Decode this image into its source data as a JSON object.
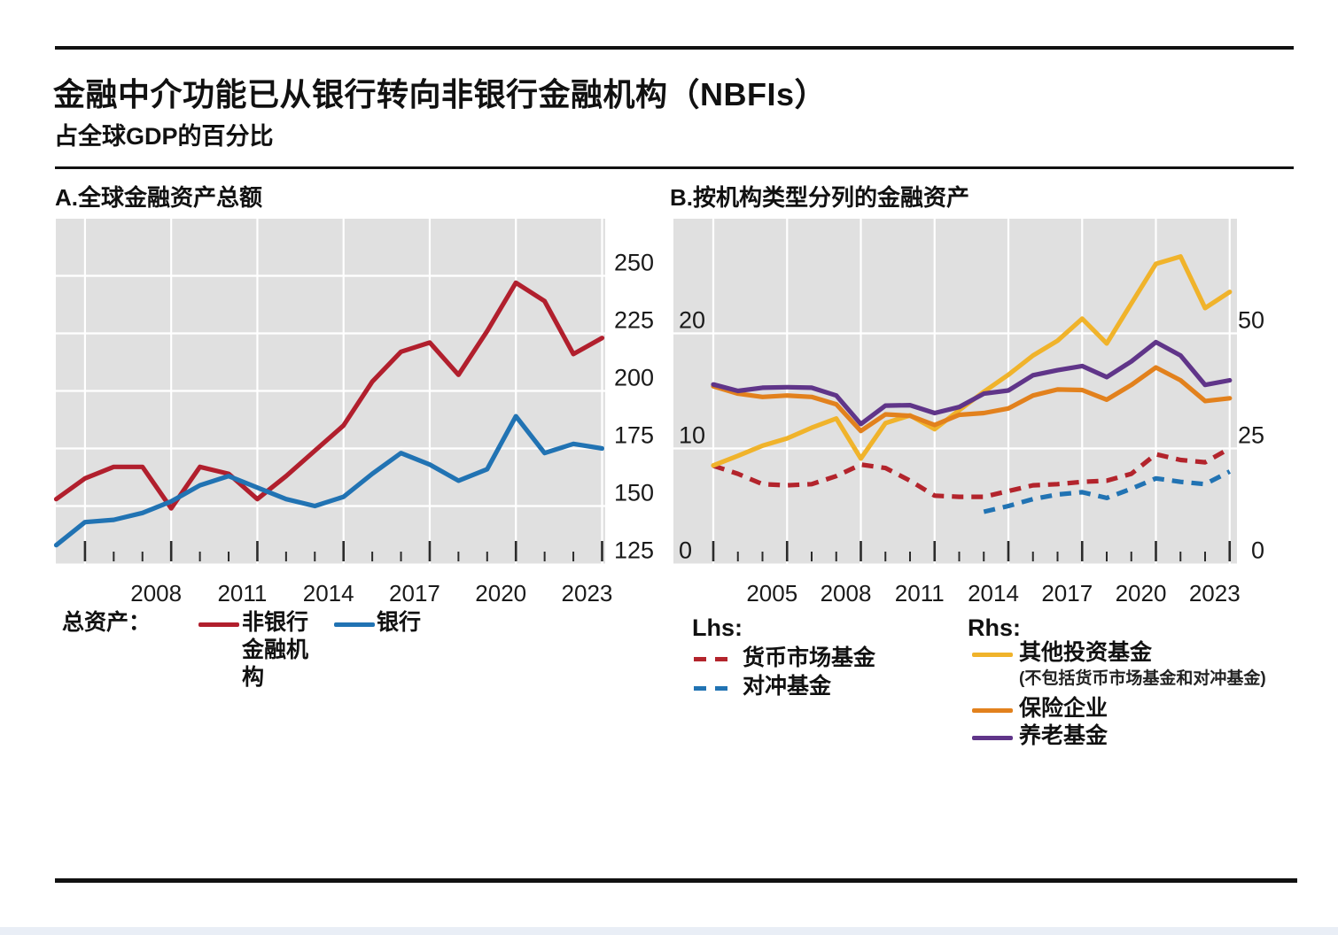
{
  "page": {
    "background": "#ffffff",
    "plot_background": "#e0e0e0",
    "gridline_color": "#ffffff",
    "tick_color": "#2b2b2b",
    "text_color": "#111111",
    "bottom_bar_color": "#e9eef6"
  },
  "header": {
    "title": "金融中介功能已从银行转向非银行金融机构（NBFIs）",
    "subtitle": "占全球GDP的百分比"
  },
  "panel_a": {
    "title": "A.全球金融资产总额",
    "legend": {
      "prefix": "总资产：",
      "items": [
        {
          "id": "nbfi",
          "label": "非银行金融机构",
          "color": "#b11f2d",
          "dash": false
        },
        {
          "id": "banks",
          "label": "银行",
          "color": "#2173b3",
          "dash": false
        }
      ]
    }
  },
  "panel_b": {
    "title": "B.按机构类型分列的金融资产",
    "legend": {
      "lhs_title": "Lhs:",
      "rhs_title": "Rhs:",
      "lhs_items": [
        {
          "id": "mmf",
          "label": "货币市场基金",
          "color": "#b3242c",
          "dash": true
        },
        {
          "id": "hedge",
          "label": "对冲基金",
          "color": "#2173b3",
          "dash": true
        }
      ],
      "rhs_items": [
        {
          "id": "oif",
          "label": "其他投资基金",
          "note": "(不包括货币市场基金和对冲基金)",
          "color": "#f0b32b",
          "dash": false
        },
        {
          "id": "insurance",
          "label": "保险企业",
          "color": "#e2811d",
          "dash": false
        },
        {
          "id": "pension",
          "label": "养老基金",
          "color": "#603589",
          "dash": false
        }
      ]
    }
  },
  "chart_data": [
    {
      "id": "a",
      "type": "line",
      "title": "A.全球金融资产总额",
      "xlabel": "",
      "ylabel": "占全球GDP的百分比",
      "x_major_ticks": [
        2005,
        2008,
        2011,
        2014,
        2017,
        2020,
        2023
      ],
      "x_labeled_ticks": [
        "2008",
        "2011",
        "2014",
        "2017",
        "2020",
        "2023"
      ],
      "x_range": [
        2004,
        2023
      ],
      "y_axis_side": "right",
      "yticks": [
        125,
        150,
        175,
        200,
        225,
        250
      ],
      "ylim": [
        125,
        275
      ],
      "grid": true,
      "series": [
        {
          "id": "nbfi",
          "name": "非银行金融机构",
          "color": "#b11f2d",
          "dash": false,
          "axis": "left",
          "x0": 2004,
          "values": [
            153,
            162,
            167,
            167,
            149,
            167,
            164,
            153,
            163,
            174,
            185,
            204,
            217,
            221,
            207,
            226,
            247,
            239,
            216,
            223
          ]
        },
        {
          "id": "banks",
          "name": "银行",
          "color": "#2173b3",
          "dash": false,
          "axis": "left",
          "x0": 2004,
          "values": [
            133,
            143,
            144,
            147,
            152,
            159,
            163,
            158,
            153,
            150,
            154,
            164,
            173,
            168,
            161,
            166,
            189,
            173,
            177,
            175
          ]
        }
      ]
    },
    {
      "id": "b",
      "type": "line",
      "title": "B.按机构类型分列的金融资产",
      "xlabel": "",
      "ylabel": "占全球GDP的百分比",
      "x_major_ticks": [
        2002,
        2005,
        2008,
        2011,
        2014,
        2017,
        2020,
        2023
      ],
      "x_labeled_ticks": [
        "2005",
        "2008",
        "2011",
        "2014",
        "2017",
        "2020",
        "2023"
      ],
      "x_range": [
        2002,
        2023
      ],
      "y_left": {
        "ticks": [
          0,
          10,
          20
        ],
        "lim": [
          0,
          30
        ]
      },
      "y_right": {
        "ticks": [
          0,
          25,
          50
        ],
        "lim": [
          0,
          75
        ]
      },
      "grid": true,
      "series": [
        {
          "id": "mmf",
          "name": "货币市场基金",
          "color": "#b3242c",
          "dash": true,
          "axis": "left",
          "x0": 2002,
          "values": [
            8.5,
            7.8,
            6.9,
            6.8,
            6.9,
            7.6,
            8.6,
            8.3,
            7.2,
            5.9,
            5.8,
            5.8,
            6.3,
            6.8,
            6.9,
            7.1,
            7.2,
            7.8,
            9.5,
            9.0,
            8.8,
            10.0
          ]
        },
        {
          "id": "hedge",
          "name": "对冲基金",
          "color": "#2173b3",
          "dash": true,
          "axis": "left",
          "x0": 2013,
          "values": [
            4.5,
            5.0,
            5.6,
            6.0,
            6.2,
            5.7,
            6.5,
            7.4,
            7.1,
            6.9,
            8.0
          ]
        },
        {
          "id": "oif",
          "name": "其他投资基金",
          "color": "#f0b32b",
          "dash": false,
          "axis": "right",
          "x0": 2002,
          "values": [
            21.3,
            23.4,
            25.6,
            27.2,
            29.5,
            31.5,
            22.8,
            30.5,
            32.2,
            29.2,
            33.3,
            37.3,
            41.0,
            45.2,
            48.4,
            53.2,
            47.8,
            56.5,
            65.1,
            66.7,
            55.5,
            59.0
          ]
        },
        {
          "id": "insurance",
          "name": "保险企业",
          "color": "#e2811d",
          "dash": false,
          "axis": "right",
          "x0": 2002,
          "values": [
            38.5,
            36.9,
            36.2,
            36.5,
            36.2,
            34.6,
            28.8,
            32.4,
            32.1,
            30.1,
            32.3,
            32.7,
            33.7,
            36.5,
            37.8,
            37.7,
            35.6,
            38.8,
            42.6,
            39.8,
            35.3,
            35.9
          ]
        },
        {
          "id": "pension",
          "name": "养老基金",
          "color": "#603589",
          "dash": false,
          "axis": "right",
          "x0": 2002,
          "values": [
            38.9,
            37.5,
            38.2,
            38.3,
            38.2,
            36.5,
            30.3,
            34.3,
            34.4,
            32.7,
            34.0,
            36.9,
            37.6,
            40.9,
            42.0,
            42.9,
            40.5,
            43.9,
            48.1,
            45.2,
            38.8,
            39.8
          ]
        }
      ]
    }
  ]
}
